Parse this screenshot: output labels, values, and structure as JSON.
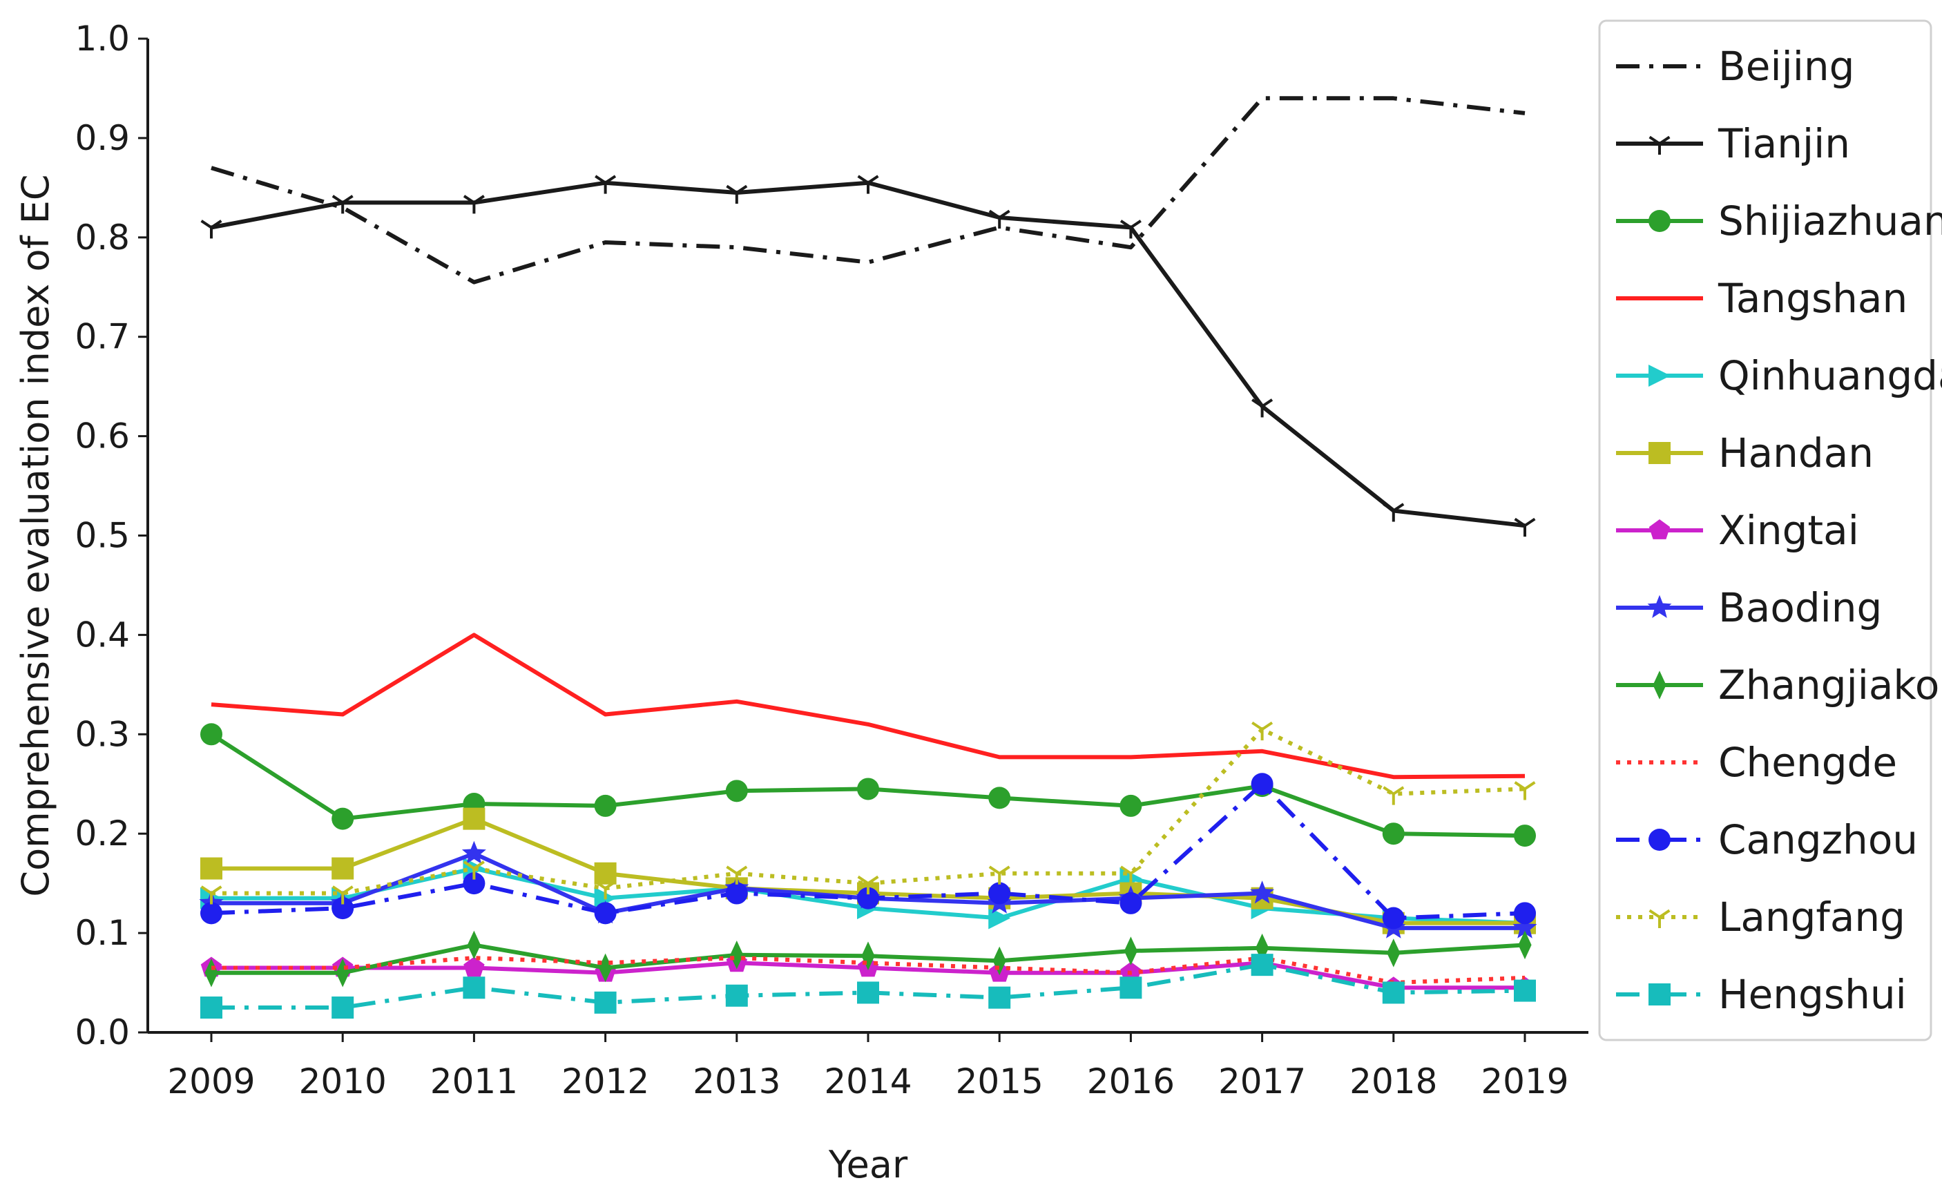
{
  "chart_data": {
    "type": "line",
    "title": "",
    "xlabel": "Year",
    "ylabel": "Comprehensive evaluation index of EC",
    "x": [
      2009,
      2010,
      2011,
      2012,
      2013,
      2014,
      2015,
      2016,
      2017,
      2018,
      2019
    ],
    "ylim": [
      0.0,
      1.0
    ],
    "yticks": [
      "0.0",
      "0.1",
      "0.2",
      "0.3",
      "0.4",
      "0.5",
      "0.6",
      "0.7",
      "0.8",
      "0.9",
      "1.0"
    ],
    "grid": false,
    "legend_position": "right, outside the plot",
    "series": [
      {
        "name": "Beijing",
        "color": "#1a1a1a",
        "line": "dashdot",
        "marker": "none",
        "values": [
          0.87,
          0.83,
          0.755,
          0.795,
          0.79,
          0.775,
          0.81,
          0.79,
          0.94,
          0.94,
          0.925
        ]
      },
      {
        "name": "Tianjin",
        "color": "#1a1a1a",
        "line": "solid",
        "marker": "tri_down",
        "values": [
          0.81,
          0.835,
          0.835,
          0.855,
          0.845,
          0.855,
          0.82,
          0.81,
          0.63,
          0.525,
          0.51
        ]
      },
      {
        "name": "Shijiazhuang",
        "color": "#2ca02c",
        "line": "solid",
        "marker": "circle",
        "values": [
          0.3,
          0.215,
          0.23,
          0.228,
          0.243,
          0.245,
          0.236,
          0.228,
          0.248,
          0.2,
          0.198
        ]
      },
      {
        "name": "Tangshan",
        "color": "#ff2020",
        "line": "solid",
        "marker": "none",
        "values": [
          0.33,
          0.32,
          0.4,
          0.32,
          0.333,
          0.31,
          0.277,
          0.277,
          0.283,
          0.257,
          0.258
        ]
      },
      {
        "name": "Qinhuangdao",
        "color": "#22cccc",
        "line": "solid",
        "marker": "triangle_right",
        "values": [
          0.135,
          0.135,
          0.165,
          0.135,
          0.145,
          0.125,
          0.115,
          0.155,
          0.125,
          0.115,
          0.11
        ]
      },
      {
        "name": "Handan",
        "color": "#bcbd22",
        "line": "solid",
        "marker": "square",
        "values": [
          0.165,
          0.165,
          0.215,
          0.16,
          0.145,
          0.14,
          0.135,
          0.14,
          0.135,
          0.11,
          0.11
        ]
      },
      {
        "name": "Xingtai",
        "color": "#cc22cc",
        "line": "solid",
        "marker": "pentagon",
        "values": [
          0.065,
          0.065,
          0.065,
          0.06,
          0.07,
          0.065,
          0.06,
          0.06,
          0.07,
          0.045,
          0.045
        ]
      },
      {
        "name": "Baoding",
        "color": "#3333ee",
        "line": "solid",
        "marker": "star",
        "values": [
          0.13,
          0.13,
          0.18,
          0.12,
          0.145,
          0.135,
          0.13,
          0.135,
          0.14,
          0.105,
          0.105
        ]
      },
      {
        "name": "Zhangjiakou",
        "color": "#2ca02c",
        "line": "solid",
        "marker": "thin_diamond",
        "values": [
          0.06,
          0.06,
          0.088,
          0.065,
          0.078,
          0.077,
          0.072,
          0.082,
          0.085,
          0.08,
          0.088
        ]
      },
      {
        "name": "Chengde",
        "color": "#ff3333",
        "line": "dotted",
        "marker": "none",
        "values": [
          0.065,
          0.065,
          0.075,
          0.07,
          0.075,
          0.07,
          0.065,
          0.06,
          0.075,
          0.05,
          0.055
        ]
      },
      {
        "name": "Cangzhou",
        "color": "#1f1fee",
        "line": "dashdot",
        "marker": "circle",
        "values": [
          0.12,
          0.125,
          0.15,
          0.12,
          0.14,
          0.135,
          0.14,
          0.13,
          0.25,
          0.115,
          0.12
        ]
      },
      {
        "name": "Langfang",
        "color": "#bcbd22",
        "line": "dotted",
        "marker": "tri_down",
        "values": [
          0.14,
          0.14,
          0.165,
          0.145,
          0.16,
          0.15,
          0.16,
          0.16,
          0.305,
          0.24,
          0.245
        ]
      },
      {
        "name": "Hengshui",
        "color": "#17bcbc",
        "line": "dashdot",
        "marker": "square",
        "values": [
          0.025,
          0.025,
          0.045,
          0.03,
          0.037,
          0.04,
          0.035,
          0.045,
          0.068,
          0.04,
          0.042
        ]
      }
    ]
  }
}
